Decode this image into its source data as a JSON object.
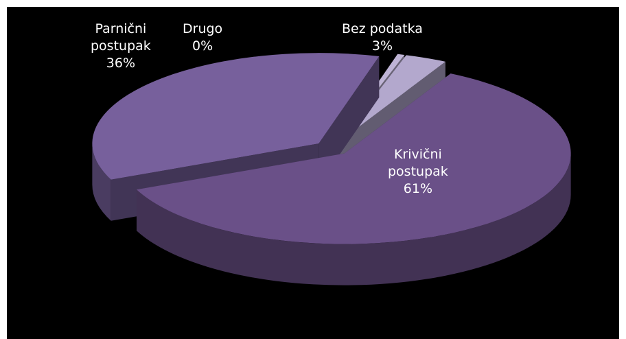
{
  "chart_data": {
    "type": "pie",
    "subtype": "3d-exploded",
    "slices": [
      {
        "name": "Krivični postupak",
        "line1": "Krivični",
        "line2": "postupak",
        "value": 61,
        "label": "61%",
        "color": "#6a5088"
      },
      {
        "name": "Parnični postupak",
        "line1": "Parnični",
        "line2": "postupak",
        "value": 36,
        "label": "36%",
        "color": "#77609c"
      },
      {
        "name": "Drugo",
        "line1": "Drugo",
        "line2": "",
        "value": 0.5,
        "label": "0%",
        "color": "#bfb4d6"
      },
      {
        "name": "Bez podatka",
        "line1": "Bez podatka",
        "line2": "",
        "value": 3,
        "label": "3%",
        "color": "#b3a8cd"
      }
    ],
    "legend": "none",
    "background": "#000000"
  }
}
